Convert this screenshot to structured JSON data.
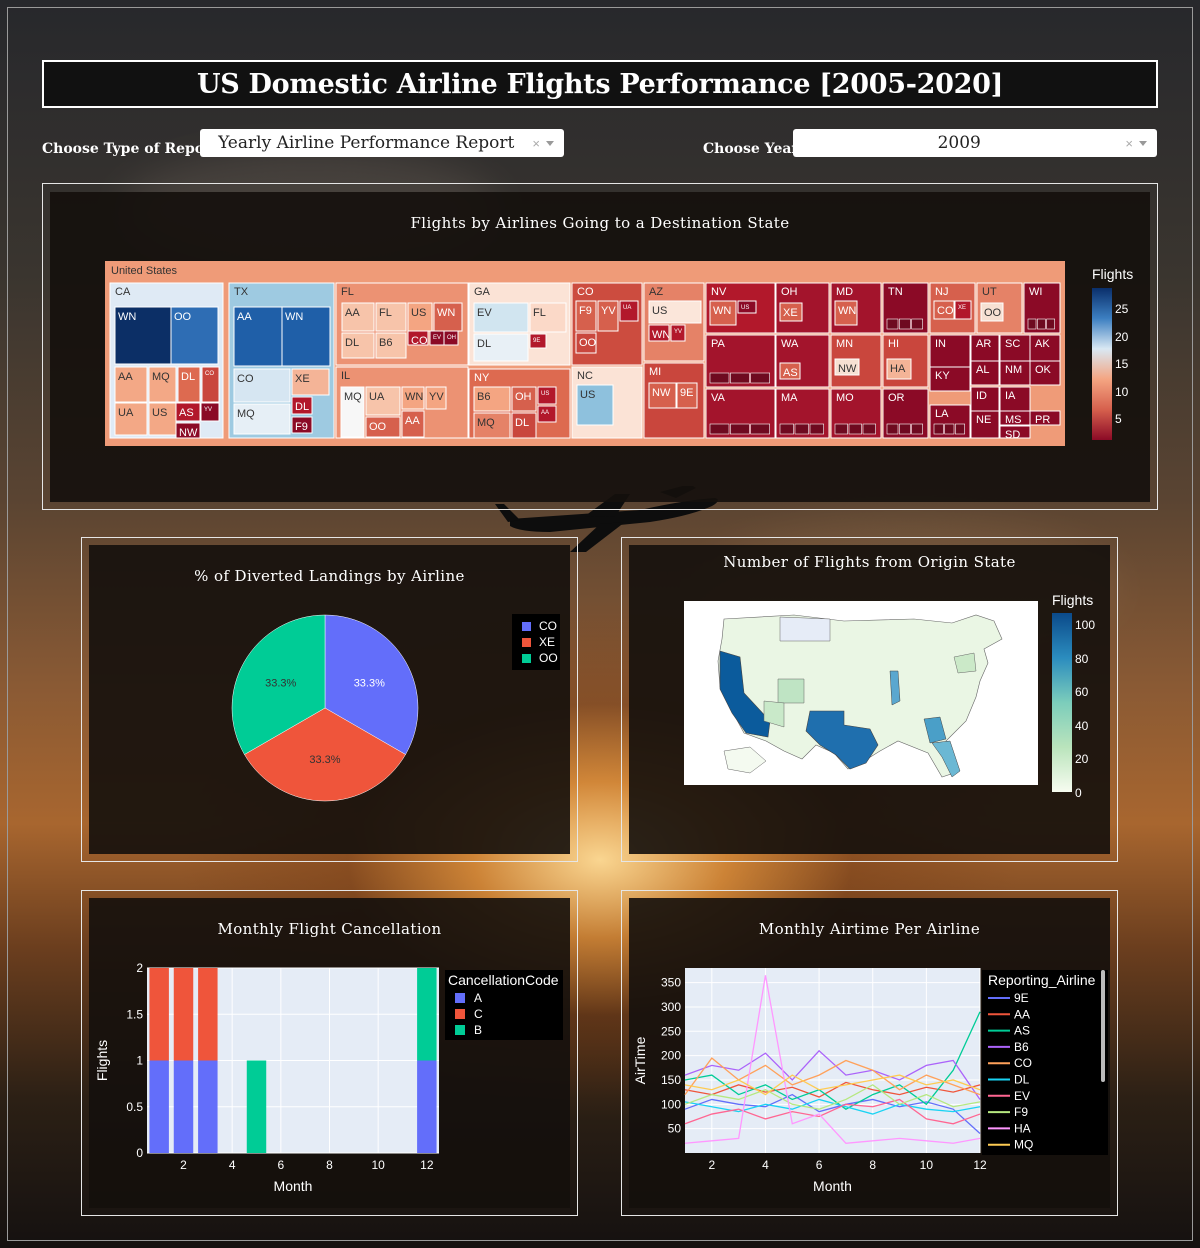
{
  "header": {
    "title": "US Domestic Airline Flights Performance [2005-2020]"
  },
  "controls": {
    "report_label": "Choose Type of Report:",
    "report_value": "Yearly Airline Performance Report",
    "year_label": "Choose Year:",
    "year_value": "2009",
    "clear_symbol": "×"
  },
  "treemap": {
    "title": "Flights by Airlines Going to a Destination State",
    "root_label": "United States",
    "colorbar_title": "Flights",
    "colorbar_ticks": [
      "25",
      "20",
      "15",
      "10",
      "5"
    ],
    "colorscale": [
      "#0a2f6b",
      "#2f6fb6",
      "#d9e8f3",
      "#f4a582",
      "#d6604d",
      "#8b0a26"
    ],
    "states": [
      {
        "name": "CA",
        "color": "#dfeaf5",
        "airlines": [
          {
            "n": "WN",
            "c": "#0c2f66"
          },
          {
            "n": "OO",
            "c": "#2e6db4"
          },
          {
            "n": "AA",
            "c": "#f3a886"
          },
          {
            "n": "MQ",
            "c": "#f3a886"
          },
          {
            "n": "DL",
            "c": "#dd6a50"
          },
          {
            "n": "CO",
            "c": "#c9463d"
          },
          {
            "n": "UA",
            "c": "#f3a886"
          },
          {
            "n": "US",
            "c": "#f3a886"
          },
          {
            "n": "AS",
            "c": "#b2182b"
          },
          {
            "n": "YV",
            "c": "#8b0a26"
          },
          {
            "n": "NW",
            "c": "#8b0a26"
          }
        ]
      },
      {
        "name": "TX",
        "color": "#9ecae1",
        "airlines": [
          {
            "n": "AA",
            "c": "#1f5fa8"
          },
          {
            "n": "WN",
            "c": "#1f5fa8"
          },
          {
            "n": "CO",
            "c": "#d6e6f2"
          },
          {
            "n": "XE",
            "c": "#f4b497"
          },
          {
            "n": "MQ",
            "c": "#e6eff6"
          },
          {
            "n": "DL",
            "c": "#b2182b"
          },
          {
            "n": "F9",
            "c": "#8b0a26"
          }
        ]
      },
      {
        "name": "FL",
        "color": "#ec9273",
        "airlines": [
          {
            "n": "AA",
            "c": "#f7c4aa"
          },
          {
            "n": "FL",
            "c": "#f7c4aa"
          },
          {
            "n": "US",
            "c": "#f4a582"
          },
          {
            "n": "WN",
            "c": "#d6604d"
          },
          {
            "n": "DL",
            "c": "#f7c4aa"
          },
          {
            "n": "B6",
            "c": "#f7c4aa"
          },
          {
            "n": "CO",
            "c": "#b2182b"
          },
          {
            "n": "EV",
            "c": "#8b0a26"
          },
          {
            "n": "OH",
            "c": "#8b0a26"
          }
        ]
      },
      {
        "name": "IL",
        "color": "#ec9273",
        "airlines": [
          {
            "n": "MQ",
            "c": "#f7f7f7"
          },
          {
            "n": "UA",
            "c": "#f7c4aa"
          },
          {
            "n": "WN",
            "c": "#f4a582"
          },
          {
            "n": "YV",
            "c": "#f4a582"
          },
          {
            "n": "OO",
            "c": "#d6604d"
          },
          {
            "n": "AA",
            "c": "#d6604d"
          }
        ]
      },
      {
        "name": "GA",
        "color": "#fbe3d6",
        "airlines": [
          {
            "n": "EV",
            "c": "#d1e5f0"
          },
          {
            "n": "FL",
            "c": "#fbd9c8"
          },
          {
            "n": "DL",
            "c": "#e8f0f6"
          },
          {
            "n": "9E",
            "c": "#b2182b"
          }
        ]
      },
      {
        "name": "NY",
        "color": "#dd6a50",
        "airlines": [
          {
            "n": "B6",
            "c": "#f4a582"
          },
          {
            "n": "OH",
            "c": "#d6604d"
          },
          {
            "n": "US",
            "c": "#b2182b"
          },
          {
            "n": "MQ",
            "c": "#e58267"
          },
          {
            "n": "DL",
            "c": "#c9463d"
          },
          {
            "n": "AA",
            "c": "#b2182b"
          }
        ]
      },
      {
        "name": "CO",
        "color": "#cc4c3f",
        "airlines": [
          {
            "n": "F9",
            "c": "#d6604d"
          },
          {
            "n": "YV",
            "c": "#d6604d"
          },
          {
            "n": "UA",
            "c": "#b2182b"
          },
          {
            "n": "OO",
            "c": "#c9463d"
          }
        ]
      },
      {
        "name": "NC",
        "color": "#fbe3d6",
        "airlines": [
          {
            "n": "US",
            "c": "#8ec1dd"
          }
        ]
      },
      {
        "name": "AZ",
        "color": "#e58267",
        "airlines": [
          {
            "n": "US",
            "c": "#fbe6da"
          },
          {
            "n": "WN",
            "c": "#b2182b"
          },
          {
            "n": "YV",
            "c": "#b2182b"
          }
        ]
      },
      {
        "name": "MI",
        "color": "#c9463d",
        "airlines": [
          {
            "n": "NW",
            "c": "#d6604d"
          },
          {
            "n": "9E",
            "c": "#d6604d"
          }
        ]
      },
      {
        "name": "NV",
        "color": "#b2182b",
        "airlines": [
          {
            "n": "WN",
            "c": "#d6604d"
          },
          {
            "n": "US",
            "c": "#8b0a26"
          }
        ]
      },
      {
        "name": "OH",
        "color": "#a3142c",
        "airlines": [
          {
            "n": "XE",
            "c": "#d6604d"
          }
        ]
      },
      {
        "name": "MD",
        "color": "#a3142c",
        "airlines": [
          {
            "n": "WN",
            "c": "#d6604d"
          }
        ]
      },
      {
        "name": "TN",
        "color": "#8b0a26",
        "airlines": []
      },
      {
        "name": "NJ",
        "color": "#d6604d",
        "airlines": [
          {
            "n": "CO",
            "c": "#d6604d"
          },
          {
            "n": "XE",
            "c": "#b2182b"
          }
        ]
      },
      {
        "name": "UT",
        "color": "#e58267",
        "airlines": [
          {
            "n": "OO",
            "c": "#f7e0d2"
          }
        ]
      },
      {
        "name": "WI",
        "color": "#8b0a26",
        "airlines": []
      },
      {
        "name": "PA",
        "color": "#a3142c",
        "airlines": []
      },
      {
        "name": "WA",
        "color": "#a3142c",
        "airlines": [
          {
            "n": "AS",
            "c": "#d6604d"
          }
        ]
      },
      {
        "name": "MN",
        "color": "#c9463d",
        "airlines": [
          {
            "n": "NW",
            "c": "#f7e0d2"
          }
        ]
      },
      {
        "name": "HI",
        "color": "#c9463d",
        "airlines": [
          {
            "n": "HA",
            "c": "#f4b497"
          }
        ]
      },
      {
        "name": "IN",
        "color": "#8b0a26",
        "airlines": []
      },
      {
        "name": "AR",
        "color": "#8b0a26",
        "airlines": []
      },
      {
        "name": "SC",
        "color": "#8b0a26",
        "airlines": []
      },
      {
        "name": "AK",
        "color": "#8b0a26",
        "airlines": []
      },
      {
        "name": "AL",
        "color": "#8b0a26",
        "airlines": []
      },
      {
        "name": "NM",
        "color": "#8b0a26",
        "airlines": []
      },
      {
        "name": "OK",
        "color": "#8b0a26",
        "airlines": []
      },
      {
        "name": "KY",
        "color": "#8b0a26",
        "airlines": []
      },
      {
        "name": "ID",
        "color": "#8b0a26",
        "airlines": []
      },
      {
        "name": "IA",
        "color": "#8b0a26",
        "airlines": []
      },
      {
        "name": "VA",
        "color": "#a3142c",
        "airlines": []
      },
      {
        "name": "MA",
        "color": "#a3142c",
        "airlines": []
      },
      {
        "name": "MO",
        "color": "#a3142c",
        "airlines": []
      },
      {
        "name": "OR",
        "color": "#8b0a26",
        "airlines": []
      },
      {
        "name": "LA",
        "color": "#8b0a26",
        "airlines": []
      },
      {
        "name": "NE",
        "color": "#8b0a26",
        "airlines": []
      },
      {
        "name": "MS",
        "color": "#8b0a26",
        "airlines": []
      },
      {
        "name": "PR",
        "color": "#8b0a26",
        "airlines": []
      },
      {
        "name": "SD",
        "color": "#8b0a26",
        "airlines": []
      }
    ]
  },
  "pie": {
    "title": "% of Diverted Landings by Airline",
    "slices": [
      {
        "label": "CO",
        "value": 33.3,
        "color": "#636efa",
        "text": "33.3%"
      },
      {
        "label": "XE",
        "value": 33.3,
        "color": "#ef553b",
        "text": "33.3%"
      },
      {
        "label": "OO",
        "value": 33.3,
        "color": "#00cc96",
        "text": "33.3%"
      }
    ]
  },
  "map": {
    "title": "Number of Flights from Origin State",
    "colorbar_title": "Flights",
    "colorbar_ticks": [
      "100",
      "80",
      "60",
      "40",
      "20",
      "0"
    ]
  },
  "chart_data": [
    {
      "type": "bar",
      "title": "Monthly Flight Cancellation",
      "xlabel": "Month",
      "ylabel": "Flights",
      "x_ticks": [
        "2",
        "4",
        "6",
        "8",
        "10",
        "12"
      ],
      "y_ticks": [
        "0",
        "0.5",
        "1",
        "1.5",
        "2"
      ],
      "xlim": [
        0.5,
        12.5
      ],
      "ylim": [
        0,
        2
      ],
      "legend_title": "CancellationCode",
      "series": [
        {
          "name": "A",
          "color": "#636efa",
          "points": [
            {
              "x": 1,
              "y": 1
            },
            {
              "x": 2,
              "y": 1
            },
            {
              "x": 3,
              "y": 1
            },
            {
              "x": 12,
              "y": 1
            }
          ]
        },
        {
          "name": "C",
          "color": "#ef553b",
          "points": [
            {
              "x": 1,
              "y": 1
            },
            {
              "x": 2,
              "y": 1
            },
            {
              "x": 3,
              "y": 1
            }
          ]
        },
        {
          "name": "B",
          "color": "#00cc96",
          "points": [
            {
              "x": 5,
              "y": 1
            },
            {
              "x": 12,
              "y": 1
            }
          ]
        }
      ]
    },
    {
      "type": "line",
      "title": "Monthly Airtime Per Airline",
      "xlabel": "Month",
      "ylabel": "AirTime",
      "x_ticks": [
        "2",
        "4",
        "6",
        "8",
        "10",
        "12"
      ],
      "y_ticks": [
        "50",
        "100",
        "150",
        "200",
        "250",
        "300",
        "350"
      ],
      "xlim": [
        1,
        12
      ],
      "ylim": [
        0,
        380
      ],
      "legend_title": "Reporting_Airline",
      "x": [
        1,
        2,
        3,
        4,
        5,
        6,
        7,
        8,
        9,
        10,
        11,
        12
      ],
      "series": [
        {
          "name": "9E",
          "color": "#636efa",
          "values": [
            90,
            110,
            100,
            95,
            120,
            85,
            100,
            110,
            95,
            105,
            90,
            40
          ]
        },
        {
          "name": "AA",
          "color": "#ef553b",
          "values": [
            130,
            120,
            140,
            125,
            135,
            115,
            145,
            130,
            120,
            135,
            125,
            140
          ]
        },
        {
          "name": "AS",
          "color": "#00cc96",
          "values": [
            150,
            160,
            120,
            140,
            110,
            130,
            90,
            120,
            140,
            100,
            170,
            290
          ]
        },
        {
          "name": "B6",
          "color": "#ab63fa",
          "values": [
            160,
            180,
            170,
            205,
            150,
            210,
            160,
            170,
            150,
            180,
            190,
            110
          ]
        },
        {
          "name": "CO",
          "color": "#ffa15a",
          "values": [
            120,
            195,
            150,
            180,
            140,
            160,
            190,
            170,
            130,
            160,
            140,
            120
          ]
        },
        {
          "name": "DL",
          "color": "#19d3f3",
          "values": [
            105,
            95,
            85,
            100,
            90,
            110,
            95,
            80,
            100,
            90,
            85,
            95
          ]
        },
        {
          "name": "EV",
          "color": "#ff6692",
          "values": [
            60,
            80,
            90,
            70,
            85,
            75,
            100,
            95,
            110,
            70,
            60,
            80
          ]
        },
        {
          "name": "F9",
          "color": "#b6e880",
          "values": [
            100,
            120,
            110,
            130,
            100,
            90,
            110,
            140,
            100,
            120,
            95,
            105
          ]
        },
        {
          "name": "HA",
          "color": "#ff97ff",
          "values": [
            20,
            25,
            30,
            365,
            60,
            80,
            20,
            25,
            30,
            25,
            20,
            30
          ]
        },
        {
          "name": "MQ",
          "color": "#fecb52",
          "values": [
            140,
            130,
            150,
            120,
            160,
            130,
            140,
            150,
            160,
            140,
            150,
            130
          ]
        }
      ]
    }
  ]
}
